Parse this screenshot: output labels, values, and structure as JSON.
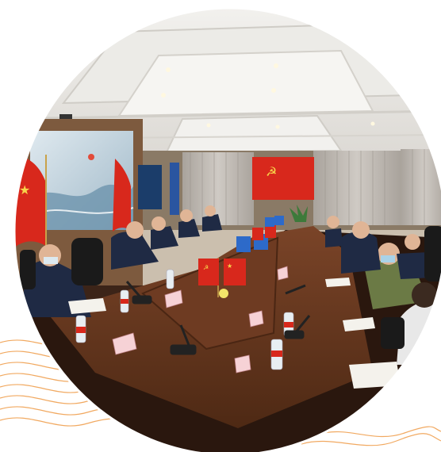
{
  "photo": {
    "subject": "meeting-room-photo",
    "accent_colors": {
      "orange_wave": "#f0a050",
      "flag_red": "#d8281c",
      "table_wood": "#6b3a22",
      "ceiling": "#e8e6e2",
      "curtain": "#b9b3ad",
      "suit_navy": "#1f2a44",
      "shirt_olive": "#6b7a45"
    }
  }
}
